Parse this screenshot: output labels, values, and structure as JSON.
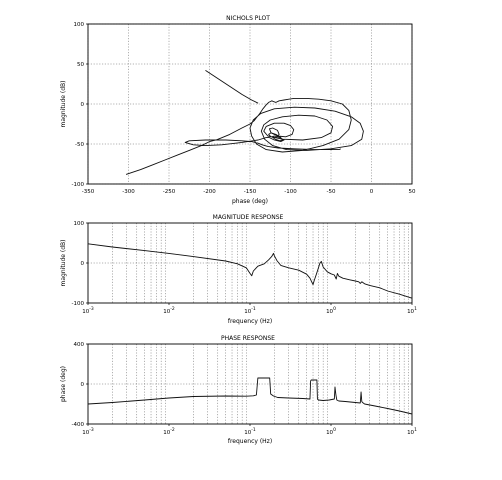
{
  "chart_data": [
    {
      "id": "nichols",
      "type": "line",
      "title": "NICHOLS PLOT",
      "xlabel": "phase (deg)",
      "ylabel": "magnitude (dB)",
      "xlim": [
        -350,
        50
      ],
      "ylim": [
        -100,
        100
      ],
      "xticks": [
        -350,
        -300,
        -250,
        -200,
        -150,
        -100,
        -50,
        0,
        50
      ],
      "yticks": [
        -100,
        -50,
        0,
        50,
        100
      ],
      "xscale": "linear",
      "grid": true,
      "series": [
        {
          "x": [
            -303,
            -285,
            -270,
            -255,
            -240,
            -225,
            -210,
            -200,
            -192,
            -187,
            -175,
            -160,
            -150,
            -145,
            -142,
            -138,
            -134,
            -130,
            -127,
            -125,
            -123,
            -121,
            -118,
            -114,
            -108,
            -102,
            -96,
            -90,
            -80,
            -65,
            -50,
            -36,
            -28,
            -25,
            -28,
            -40,
            -60,
            -85,
            -110,
            -130,
            -142,
            -148,
            -150,
            -146,
            -137,
            -120,
            -95,
            -70,
            -45,
            -25,
            -14,
            -10,
            -12,
            -25,
            -50,
            -80,
            -105,
            -122,
            -132,
            -136,
            -133,
            -125,
            -110,
            -90,
            -70,
            -55,
            -48,
            -50,
            -62,
            -85,
            -110,
            -128,
            -133,
            -130,
            -120,
            -108,
            -100,
            -96,
            -98,
            -106,
            -116,
            -124,
            -126,
            -122,
            -116,
            -114,
            -118,
            -124,
            -127,
            -124,
            -118,
            -112,
            -110,
            -113,
            -119,
            -123,
            -120,
            -113,
            -108,
            -112,
            -120,
            -126,
            -130,
            -140,
            -160,
            -185,
            -205,
            -220,
            -230,
            -225,
            -205,
            -180,
            -160,
            -148,
            -140,
            -135,
            -128,
            -115,
            -95,
            -70,
            -50,
            -40,
            -38
          ],
          "y": [
            -88,
            -82,
            -76,
            -70,
            -64,
            -58,
            -52,
            -47,
            -45,
            -43,
            -38,
            -30,
            -25,
            -21,
            -17,
            -12,
            -6,
            -1,
            2,
            3,
            4,
            3,
            2,
            4,
            5,
            6,
            7,
            7,
            7,
            6,
            4,
            0,
            -8,
            -20,
            -32,
            -44,
            -52,
            -58,
            -60,
            -57,
            -50,
            -40,
            -30,
            -20,
            -12,
            -6,
            -4,
            -5,
            -9,
            -16,
            -24,
            -34,
            -44,
            -52,
            -56,
            -58,
            -57,
            -52,
            -44,
            -34,
            -26,
            -20,
            -16,
            -14,
            -15,
            -20,
            -28,
            -36,
            -42,
            -45,
            -44,
            -40,
            -34,
            -28,
            -24,
            -24,
            -27,
            -32,
            -38,
            -41,
            -40,
            -36,
            -31,
            -30,
            -33,
            -38,
            -42,
            -41,
            -38,
            -36,
            -38,
            -42,
            -45,
            -46,
            -44,
            -41,
            -40,
            -42,
            -45,
            -47,
            -45,
            -42,
            -42,
            -45,
            -48,
            -51,
            -52,
            -51,
            -48,
            -46,
            -45,
            -45,
            -46,
            -47,
            -49,
            -51,
            -53,
            -55,
            -56,
            -57,
            -57,
            -57,
            -56
          ]
        },
        {
          "x": [
            -205,
            -190,
            -175,
            -160,
            -148,
            -140
          ],
          "y": [
            42,
            32,
            22,
            12,
            5,
            1
          ]
        }
      ]
    },
    {
      "id": "magnitude",
      "type": "line",
      "title": "MAGNITUDE RESPONSE",
      "xlabel": "frequency (Hz)",
      "ylabel": "magnitude (dB)",
      "xscale": "log",
      "xlim": [
        0.001,
        10
      ],
      "ylim": [
        -100,
        100
      ],
      "xticks_exp": [
        -3,
        -2,
        -1,
        0,
        1
      ],
      "yticks": [
        -100,
        0,
        100
      ],
      "grid": true,
      "series": [
        {
          "x": [
            0.001,
            0.002,
            0.005,
            0.01,
            0.02,
            0.05,
            0.07,
            0.09,
            0.1,
            0.105,
            0.11,
            0.125,
            0.15,
            0.17,
            0.185,
            0.195,
            0.2,
            0.215,
            0.24,
            0.3,
            0.4,
            0.5,
            0.55,
            0.58,
            0.6,
            0.62,
            0.66,
            0.7,
            0.73,
            0.76,
            0.8,
            0.9,
            1.0,
            1.1,
            1.16,
            1.2,
            1.25,
            1.4,
            1.7,
            2.0,
            2.2,
            2.3,
            2.4,
            2.6,
            3.0,
            4.0,
            5.0,
            7.0,
            10.0
          ],
          "y": [
            48,
            40,
            31,
            24,
            16,
            5,
            -2,
            -12,
            -26,
            -32,
            -20,
            -8,
            -2,
            8,
            16,
            24,
            18,
            6,
            -6,
            -12,
            -18,
            -28,
            -38,
            -48,
            -54,
            -44,
            -28,
            -12,
            0,
            4,
            -10,
            -22,
            -27,
            -30,
            -40,
            -26,
            -33,
            -38,
            -42,
            -45,
            -47,
            -51,
            -47,
            -52,
            -56,
            -62,
            -70,
            -78,
            -88
          ]
        }
      ]
    },
    {
      "id": "phase",
      "type": "line",
      "title": "PHASE RESPONSE",
      "xlabel": "frequency (Hz)",
      "ylabel": "phase (deg)",
      "xscale": "log",
      "xlim": [
        0.001,
        10
      ],
      "ylim": [
        -400,
        400
      ],
      "xticks_exp": [
        -3,
        -2,
        -1,
        0,
        1
      ],
      "yticks": [
        -400,
        0,
        400
      ],
      "grid": true,
      "series": [
        {
          "x": [
            0.001,
            0.002,
            0.005,
            0.01,
            0.02,
            0.05,
            0.09,
            0.11,
            0.12,
            0.125,
            0.175,
            0.18,
            0.195,
            0.22,
            0.3,
            0.45,
            0.55,
            0.56,
            0.57,
            0.67,
            0.68,
            0.7,
            0.8,
            0.95,
            1.1,
            1.12,
            1.15,
            1.18,
            1.21,
            1.25,
            1.5,
            2.0,
            2.3,
            2.35,
            2.4,
            2.45,
            2.5,
            2.6,
            3.5,
            5.0,
            7.0,
            10.0
          ],
          "y": [
            -200,
            -185,
            -160,
            -140,
            -125,
            -120,
            -122,
            -118,
            -110,
            60,
            60,
            -100,
            -120,
            -135,
            -140,
            -145,
            -150,
            30,
            40,
            40,
            -150,
            -160,
            -165,
            -160,
            -150,
            -30,
            -110,
            -160,
            -165,
            -170,
            -175,
            -185,
            -190,
            -80,
            -175,
            -185,
            -190,
            -200,
            -220,
            -245,
            -270,
            -300
          ]
        }
      ]
    }
  ]
}
